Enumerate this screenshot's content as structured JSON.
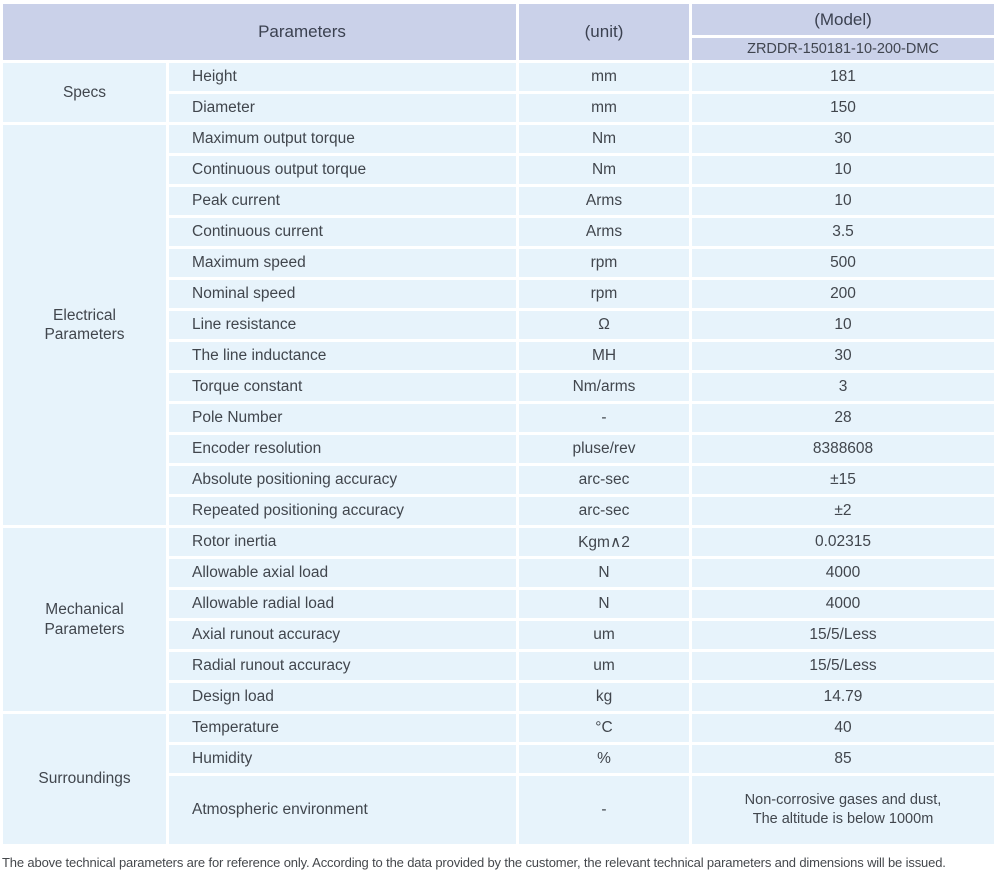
{
  "table": {
    "header": {
      "parameters_label": "Parameters",
      "unit_label": "(unit)",
      "model_label": "(Model)",
      "model_value": "ZRDDR-150181-10-200-DMC"
    },
    "groups": [
      {
        "name": "Specs",
        "rows": [
          {
            "parameter": "Height",
            "unit": "mm",
            "value": "181"
          },
          {
            "parameter": "Diameter",
            "unit": "mm",
            "value": "150"
          }
        ]
      },
      {
        "name": "Electrical Parameters",
        "rows": [
          {
            "parameter": "Maximum output torque",
            "unit": "Nm",
            "value": "30"
          },
          {
            "parameter": "Continuous output torque",
            "unit": "Nm",
            "value": "10"
          },
          {
            "parameter": "Peak current",
            "unit": "Arms",
            "value": "10"
          },
          {
            "parameter": "Continuous current",
            "unit": "Arms",
            "value": "3.5"
          },
          {
            "parameter": "Maximum speed",
            "unit": "rpm",
            "value": "500"
          },
          {
            "parameter": "Nominal speed",
            "unit": "rpm",
            "value": "200"
          },
          {
            "parameter": "Line resistance",
            "unit": "Ω",
            "value": "10"
          },
          {
            "parameter": "The line inductance",
            "unit": "MH",
            "value": "30"
          },
          {
            "parameter": "Torque constant",
            "unit": "Nm/arms",
            "value": "3"
          },
          {
            "parameter": "Pole Number",
            "unit": "-",
            "value": "28"
          },
          {
            "parameter": "Encoder resolution",
            "unit": "pluse/rev",
            "value": "8388608"
          },
          {
            "parameter": "Absolute positioning accuracy",
            "unit": "arc-sec",
            "value": "±15"
          },
          {
            "parameter": "Repeated positioning accuracy",
            "unit": "arc-sec",
            "value": "±2"
          }
        ]
      },
      {
        "name": "Mechanical Parameters",
        "rows": [
          {
            "parameter": "Rotor inertia",
            "unit": "Kgm∧2",
            "value": "0.02315"
          },
          {
            "parameter": "Allowable axial load",
            "unit": "N",
            "value": "4000"
          },
          {
            "parameter": "Allowable radial load",
            "unit": "N",
            "value": "4000"
          },
          {
            "parameter": "Axial runout accuracy",
            "unit": "um",
            "value": "15/5/Less"
          },
          {
            "parameter": "Radial runout accuracy",
            "unit": "um",
            "value": "15/5/Less"
          },
          {
            "parameter": "Design load",
            "unit": "kg",
            "value": "14.79"
          }
        ]
      },
      {
        "name": "Surroundings",
        "rows": [
          {
            "parameter": "Temperature",
            "unit": "°C",
            "value": "40"
          },
          {
            "parameter": "Humidity",
            "unit": "%",
            "value": "85"
          },
          {
            "parameter": "Atmospheric environment",
            "unit": "-",
            "value": "Non-corrosive gases and dust,\nThe altitude is below 1000m",
            "tall": true
          }
        ]
      }
    ]
  },
  "footer": {
    "note": "The above technical parameters are for reference only. According to the data provided by the customer, the relevant technical parameters and dimensions will be issued."
  },
  "colors": {
    "header_bg": "#cad1e9",
    "row_bg": "#e7f3fb",
    "text": "#41464d"
  }
}
